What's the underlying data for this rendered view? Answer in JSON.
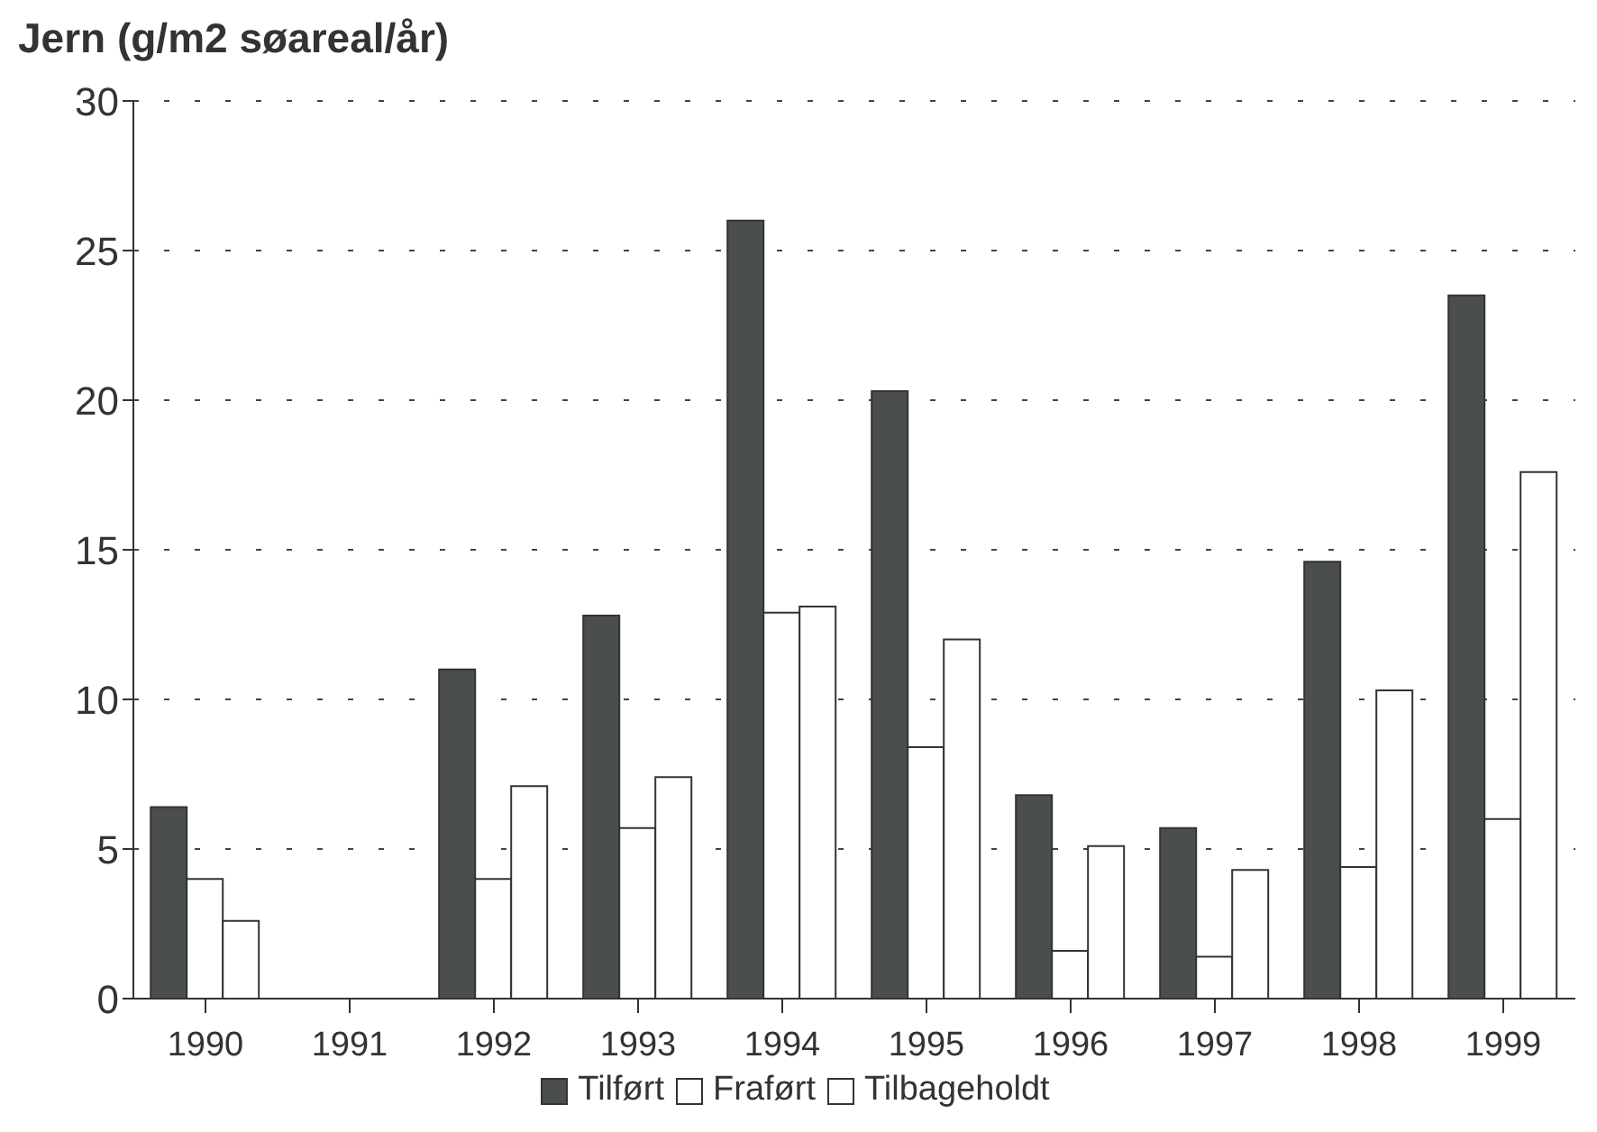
{
  "chart_data": {
    "type": "bar",
    "title": "Jern (g/m2 søareal/år)",
    "categories": [
      "1990",
      "1991",
      "1992",
      "1993",
      "1994",
      "1995",
      "1996",
      "1997",
      "1998",
      "1999"
    ],
    "series": [
      {
        "name": "Tilført",
        "color": "#4a4e4c",
        "values": [
          6.4,
          null,
          11.0,
          12.8,
          26.0,
          20.3,
          6.8,
          5.7,
          14.6,
          23.5
        ]
      },
      {
        "name": "Fraført",
        "color": "#ffffff",
        "values": [
          4.0,
          null,
          4.0,
          5.7,
          12.9,
          8.4,
          1.6,
          1.4,
          4.4,
          6.0
        ]
      },
      {
        "name": "Tilbageholdt",
        "color": "#ffffff",
        "values": [
          2.6,
          null,
          7.1,
          7.4,
          13.1,
          12.0,
          5.1,
          4.3,
          10.3,
          17.6
        ]
      }
    ],
    "ylim": [
      0,
      30
    ],
    "yticks": [
      0,
      5,
      10,
      15,
      20,
      25,
      30
    ],
    "grid": "y",
    "legend": "bottom"
  }
}
